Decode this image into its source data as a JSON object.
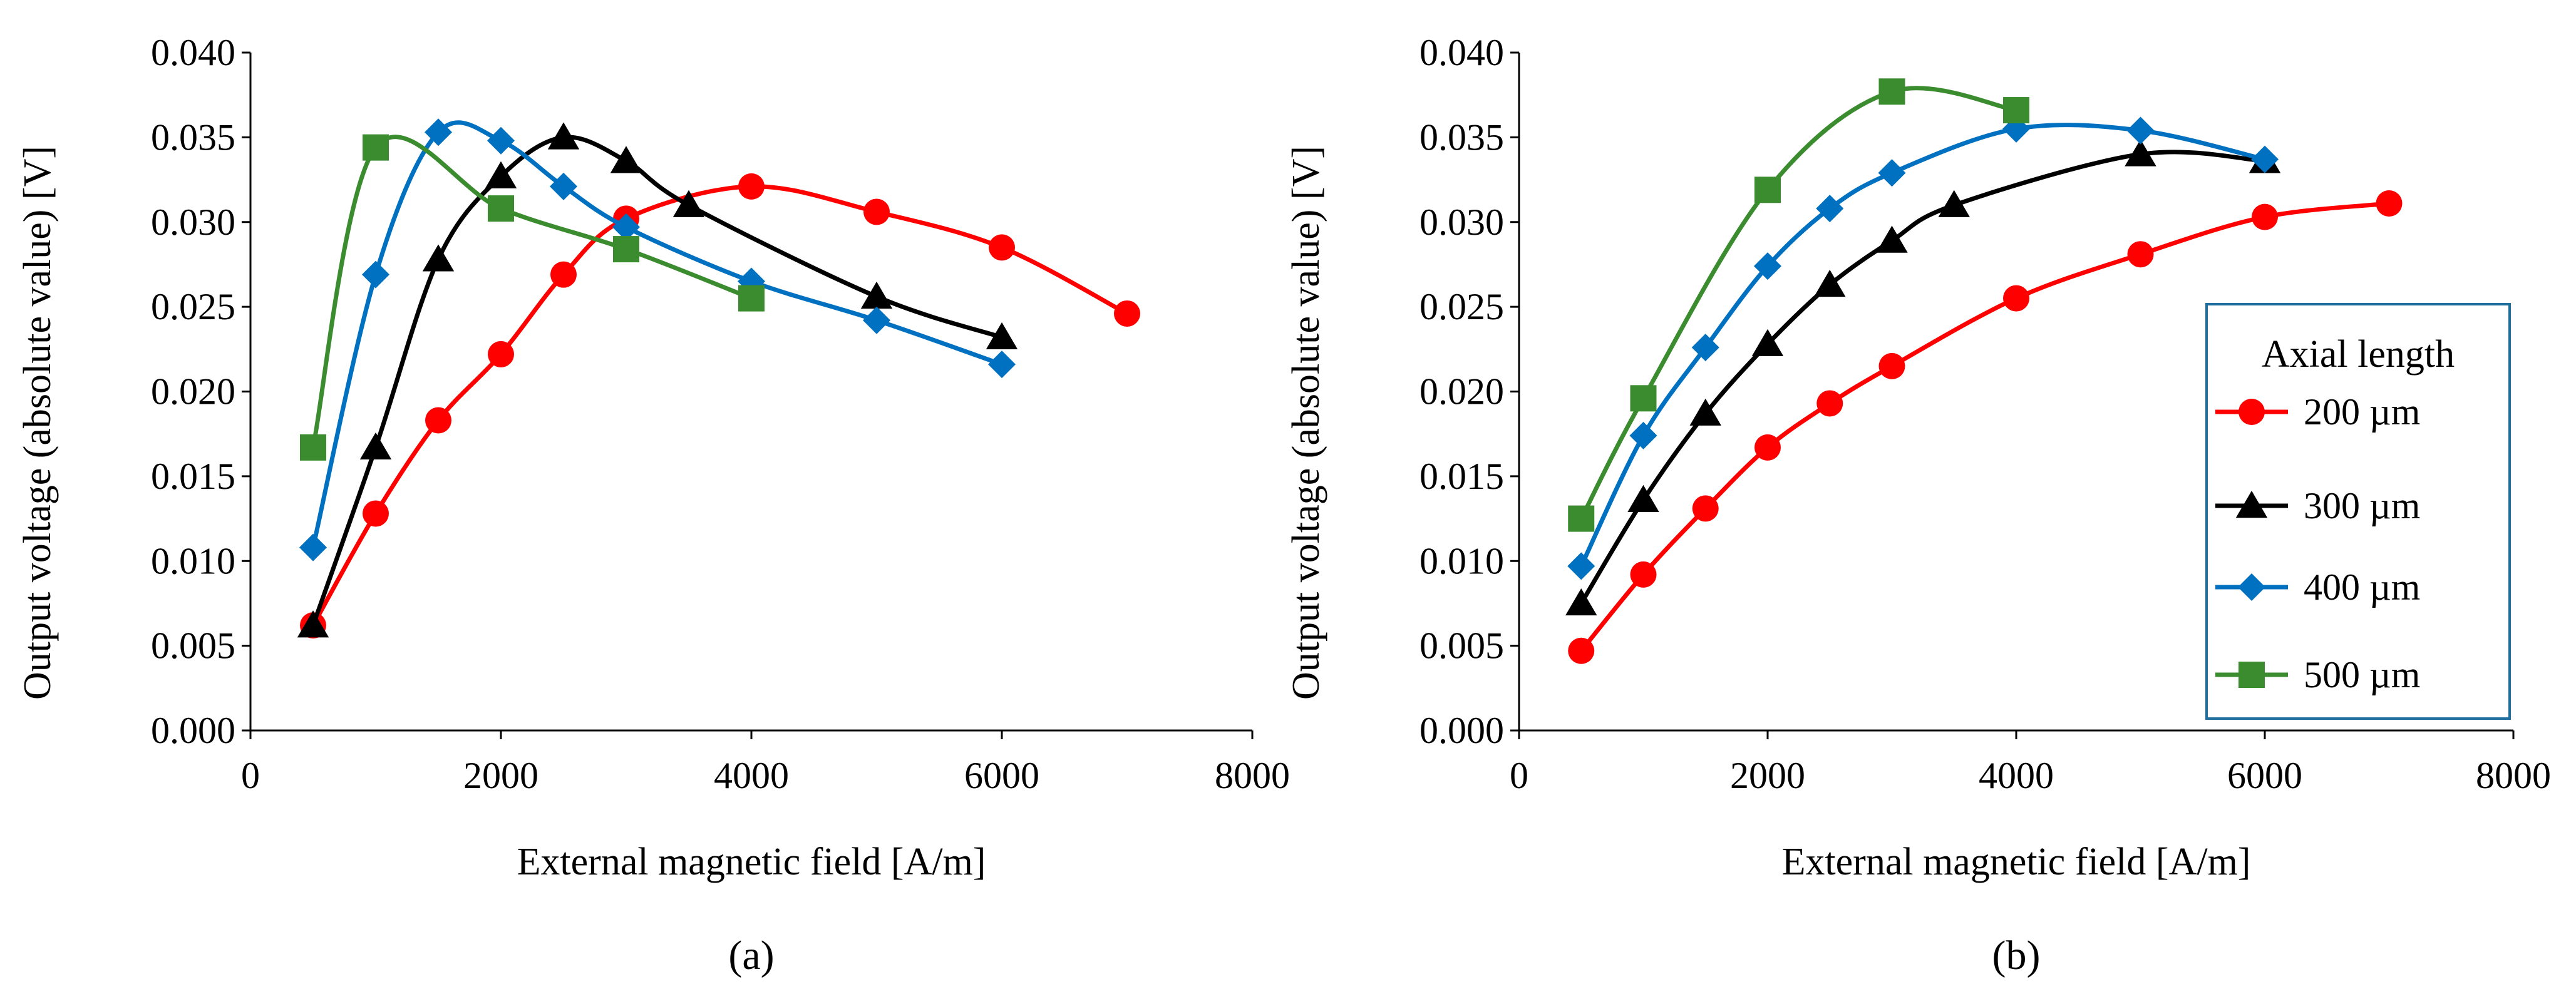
{
  "chart_data": [
    {
      "type": "line",
      "panel_label": "(a)",
      "xlabel": "External magnetic field [A/m]",
      "ylabel": "Output voltage (absolute value) [V]",
      "xlim": [
        0,
        8000
      ],
      "ylim": [
        0,
        0.04
      ],
      "xticks": [
        "0",
        "2000",
        "4000",
        "6000",
        "8000"
      ],
      "yticks": [
        "0.000",
        "0.005",
        "0.010",
        "0.015",
        "0.020",
        "0.025",
        "0.030",
        "0.035",
        "0.040"
      ],
      "grid": false,
      "series": [
        {
          "name": "200 µm",
          "color": "#ff0000",
          "marker": "circle",
          "x": [
            500,
            1000,
            1500,
            2000,
            2500,
            3000,
            4000,
            5000,
            6000,
            7000
          ],
          "y": [
            0.0062,
            0.0128,
            0.0183,
            0.0222,
            0.0269,
            0.0302,
            0.0321,
            0.0306,
            0.0285,
            0.0246
          ]
        },
        {
          "name": "300 µm",
          "color": "#000000",
          "marker": "triangle",
          "x": [
            500,
            1000,
            1500,
            2000,
            2500,
            3000,
            3500,
            5000,
            6000
          ],
          "y": [
            0.0062,
            0.0167,
            0.0278,
            0.0327,
            0.035,
            0.0336,
            0.031,
            0.0256,
            0.0232
          ]
        },
        {
          "name": "400 µm",
          "color": "#0070c0",
          "marker": "diamond",
          "x": [
            500,
            1000,
            1500,
            2000,
            2500,
            3000,
            4000,
            5000,
            6000
          ],
          "y": [
            0.0108,
            0.0269,
            0.0353,
            0.0348,
            0.0321,
            0.0297,
            0.0265,
            0.0242,
            0.0216
          ]
        },
        {
          "name": "500 µm",
          "color": "#3a8c2f",
          "marker": "square",
          "x": [
            500,
            1000,
            2000,
            3000,
            4000
          ],
          "y": [
            0.0167,
            0.0344,
            0.0308,
            0.0284,
            0.0255
          ]
        }
      ]
    },
    {
      "type": "line",
      "panel_label": "(b)",
      "xlabel": "External magnetic field [A/m]",
      "ylabel": "Output voltage (absolute value) [V]",
      "xlim": [
        0,
        8000
      ],
      "ylim": [
        0,
        0.04
      ],
      "xticks": [
        "0",
        "2000",
        "4000",
        "6000",
        "8000"
      ],
      "yticks": [
        "0.000",
        "0.005",
        "0.010",
        "0.015",
        "0.020",
        "0.025",
        "0.030",
        "0.035",
        "0.040"
      ],
      "grid": false,
      "legend": {
        "title": "Axial length",
        "position": "bottom-right"
      },
      "series": [
        {
          "name": "200 µm",
          "color": "#ff0000",
          "marker": "circle",
          "x": [
            500,
            1000,
            1500,
            2000,
            2500,
            3000,
            4000,
            5000,
            6000,
            7000
          ],
          "y": [
            0.0047,
            0.0092,
            0.0131,
            0.0167,
            0.0193,
            0.0215,
            0.0255,
            0.0281,
            0.0303,
            0.0311
          ]
        },
        {
          "name": "300 µm",
          "color": "#000000",
          "marker": "triangle",
          "x": [
            500,
            1000,
            1500,
            2000,
            2500,
            3000,
            3500,
            5000,
            6000
          ],
          "y": [
            0.0075,
            0.0136,
            0.0187,
            0.0228,
            0.0263,
            0.0289,
            0.031,
            0.034,
            0.0336
          ]
        },
        {
          "name": "400 µm",
          "color": "#0070c0",
          "marker": "diamond",
          "x": [
            500,
            1000,
            1500,
            2000,
            2500,
            3000,
            4000,
            5000,
            6000
          ],
          "y": [
            0.0097,
            0.0174,
            0.0226,
            0.0274,
            0.0308,
            0.0329,
            0.0355,
            0.0354,
            0.0337
          ]
        },
        {
          "name": "500 µm",
          "color": "#3a8c2f",
          "marker": "square",
          "x": [
            500,
            1000,
            2000,
            3000,
            4000
          ],
          "y": [
            0.0125,
            0.0196,
            0.0319,
            0.0377,
            0.0366
          ]
        }
      ]
    }
  ]
}
